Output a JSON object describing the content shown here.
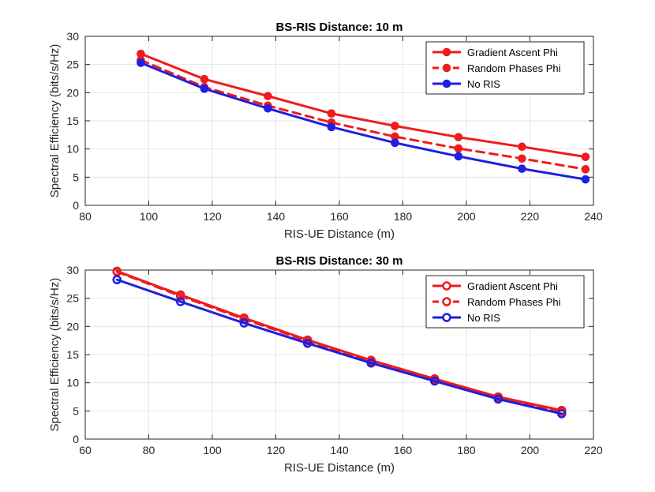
{
  "chart_data": [
    {
      "type": "line",
      "title": "BS-RIS Distance: 10 m",
      "xlabel": "RIS-UE Distance (m)",
      "ylabel": "Spectral Efficiency (bits/s/Hz)",
      "xlim": [
        80,
        240
      ],
      "ylim": [
        0,
        30
      ],
      "xticks": [
        80,
        100,
        120,
        140,
        160,
        180,
        200,
        220,
        240
      ],
      "yticks": [
        0,
        5,
        10,
        15,
        20,
        25,
        30
      ],
      "grid": true,
      "legend_position": "top-right",
      "x": [
        97.5,
        117.5,
        137.5,
        157.5,
        177.5,
        197.5,
        217.5,
        237.5
      ],
      "series": [
        {
          "name": "Gradient Ascent Phi",
          "color": "#ee1c1c",
          "dash": "solid",
          "marker": "filled-circle",
          "values": [
            26.9,
            22.4,
            19.4,
            16.3,
            14.1,
            12.1,
            10.4,
            8.6
          ]
        },
        {
          "name": "Random Phases Phi",
          "color": "#ee1c1c",
          "dash": "dashed",
          "marker": "filled-circle",
          "values": [
            25.8,
            21.0,
            17.7,
            14.7,
            12.2,
            10.1,
            8.3,
            6.4
          ]
        },
        {
          "name": "No RIS",
          "color": "#1f1fe0",
          "dash": "solid",
          "marker": "filled-circle",
          "values": [
            25.3,
            20.7,
            17.2,
            13.9,
            11.1,
            8.7,
            6.5,
            4.6
          ]
        }
      ]
    },
    {
      "type": "line",
      "title": "BS-RIS Distance: 30 m",
      "xlabel": "RIS-UE Distance (m)",
      "ylabel": "Spectral Efficiency (bits/s/Hz)",
      "xlim": [
        60,
        220
      ],
      "ylim": [
        0,
        30
      ],
      "xticks": [
        60,
        80,
        100,
        120,
        140,
        160,
        180,
        200,
        220
      ],
      "yticks": [
        0,
        5,
        10,
        15,
        20,
        25,
        30
      ],
      "grid": true,
      "legend_position": "top-right",
      "x": [
        70,
        90,
        110,
        130,
        150,
        170,
        190,
        210
      ],
      "series": [
        {
          "name": "Gradient Ascent Phi",
          "color": "#ee1c1c",
          "dash": "solid",
          "marker": "open-circle",
          "values": [
            29.8,
            25.6,
            21.5,
            17.6,
            14.0,
            10.7,
            7.5,
            5.1
          ]
        },
        {
          "name": "Random Phases Phi",
          "color": "#ee1c1c",
          "dash": "dashed",
          "marker": "open-circle",
          "values": [
            29.7,
            25.4,
            21.3,
            17.4,
            13.8,
            10.5,
            7.3,
            4.9
          ]
        },
        {
          "name": "No RIS",
          "color": "#1f1fe0",
          "dash": "solid",
          "marker": "open-circle",
          "values": [
            28.3,
            24.4,
            20.6,
            17.0,
            13.5,
            10.3,
            7.1,
            4.5
          ]
        }
      ]
    }
  ]
}
